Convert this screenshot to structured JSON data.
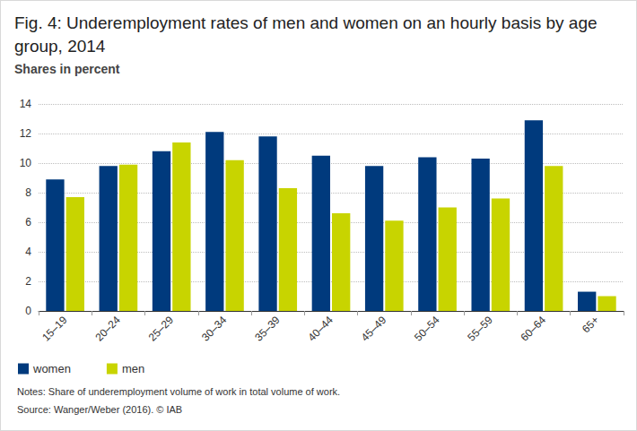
{
  "chart_data": {
    "type": "bar",
    "title": "Fig. 4: Underemployment rates of men and women on an hourly basis by age group, 2014",
    "subtitle": "Shares in percent",
    "annotations": [
      "Notes: Share of underemployment volume of work in total volume of work.",
      "Source: Wanger/Weber (2016). © IAB"
    ],
    "categories": [
      "15–19",
      "20–24",
      "25–29",
      "30–34",
      "35–39",
      "40–44",
      "45–49",
      "50–54",
      "55–59",
      "60–64",
      "65+"
    ],
    "series": [
      {
        "name": "women",
        "color": "#003a7d",
        "values": [
          8.9,
          9.8,
          10.8,
          12.1,
          11.8,
          10.5,
          9.8,
          10.4,
          10.3,
          12.9,
          1.3
        ]
      },
      {
        "name": "men",
        "color": "#c8d400",
        "values": [
          7.7,
          9.9,
          11.4,
          10.2,
          8.3,
          6.6,
          6.1,
          7.0,
          7.6,
          9.8,
          1.0
        ]
      }
    ],
    "ylim": [
      0,
      14
    ],
    "yticks": [
      0,
      2,
      4,
      6,
      8,
      10,
      12,
      14
    ],
    "grid": true,
    "legend": "bottom left"
  }
}
